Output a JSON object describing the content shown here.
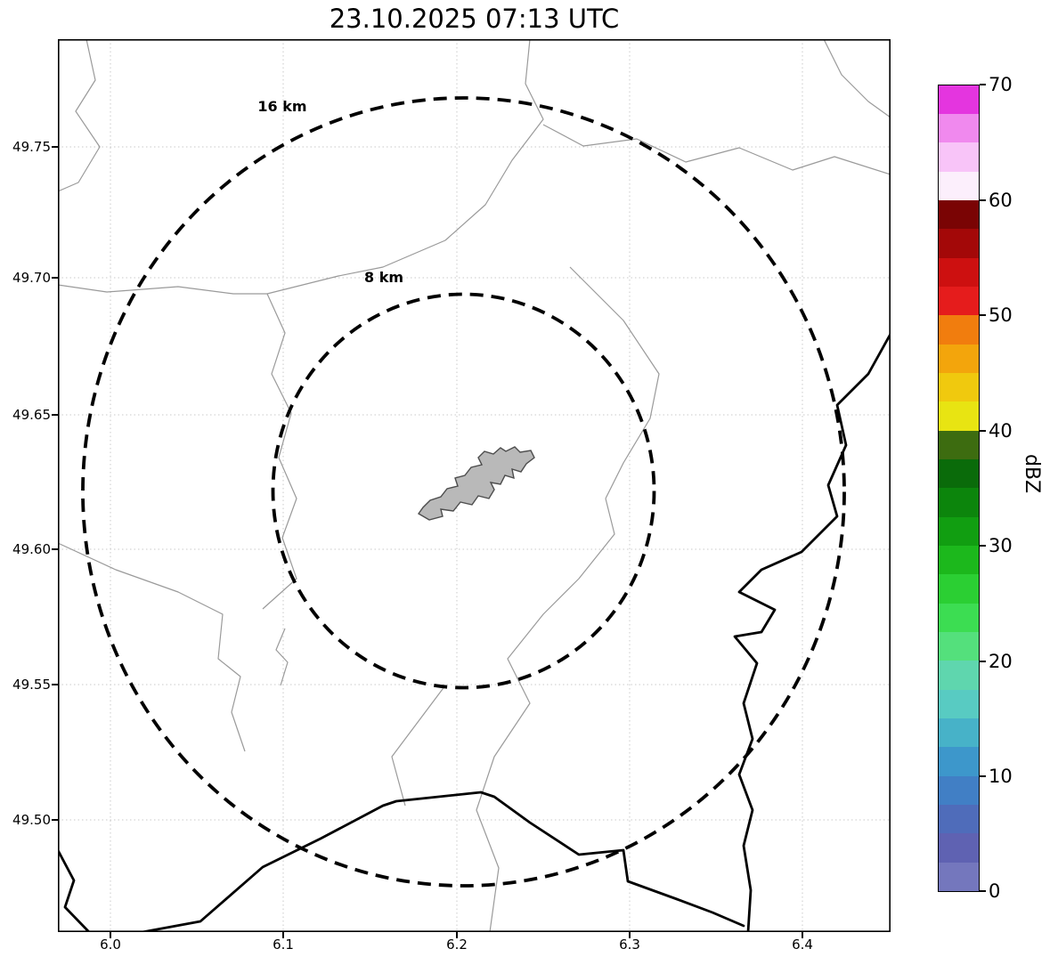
{
  "chart_data": {
    "type": "map",
    "subtype": "weather-radar-range-display",
    "title": "23.10.2025 07:13 UTC",
    "x_axis": {
      "tick_labels": [
        "6.0",
        "6.1",
        "6.2",
        "6.3",
        "6.4"
      ],
      "range": [
        5.97,
        6.455
      ],
      "unit": "degrees longitude"
    },
    "y_axis": {
      "tick_labels": [
        "49.75",
        "49.70",
        "49.65",
        "49.60",
        "49.55",
        "49.50"
      ],
      "range": [
        49.468,
        49.785
      ],
      "unit": "degrees latitude"
    },
    "range_rings": {
      "center": {
        "lon": 6.2,
        "lat": 49.62
      },
      "rings": [
        {
          "label": "8 km",
          "radius_km": 8
        },
        {
          "label": "16 km",
          "radius_km": 16
        }
      ]
    },
    "colorbar": {
      "label": "dBZ",
      "min": 0,
      "max": 70,
      "tick_labels_top_to_bottom": [
        "70",
        "60",
        "50",
        "40",
        "30",
        "20",
        "10",
        "0"
      ],
      "segment_colors_bottom_to_top": [
        "#7477bd",
        "#5f62b2",
        "#4f6cba",
        "#417fc5",
        "#3d97cb",
        "#47b2c8",
        "#58cbc2",
        "#5fd6ae",
        "#54e07c",
        "#3cdd52",
        "#2bcf33",
        "#1cb81c",
        "#119e11",
        "#0c850c",
        "#0a6b0a",
        "#3d6c10",
        "#e8e412",
        "#f0c90e",
        "#f3a50c",
        "#f17d0e",
        "#e51c1c",
        "#cd1010",
        "#a30808",
        "#7a0404",
        "#fceffc",
        "#f8c4f8",
        "#f089ee",
        "#e435df"
      ]
    },
    "map_colors": {
      "city_fill": "#b9b9b9",
      "city_outline": "#4d4d4d",
      "country_border": "#000000",
      "admin_boundary": "#9a9a9a",
      "ring_color": "#000000"
    },
    "grid": true
  }
}
